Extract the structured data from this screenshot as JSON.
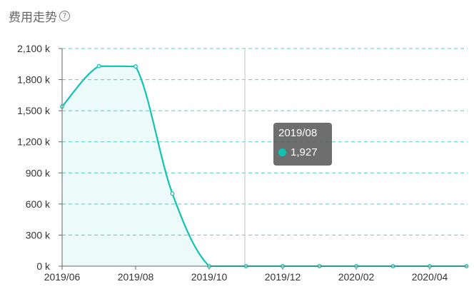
{
  "header": {
    "title": "费用走势",
    "help_glyph": "?"
  },
  "chart_data": {
    "type": "area",
    "title": "费用走势",
    "color": "#11c2b2",
    "x_tick_labels": [
      "2019/06",
      "2019/08",
      "2019/10",
      "2019/12",
      "2020/02",
      "2020/04"
    ],
    "x": [
      "2019/06",
      "2019/07",
      "2019/08",
      "2019/09",
      "2019/10",
      "2019/11",
      "2019/12",
      "2020/01",
      "2020/02",
      "2020/03",
      "2020/04",
      "2020/05"
    ],
    "values": [
      1540,
      1930,
      1927,
      700,
      0,
      0,
      0,
      0,
      0,
      0,
      0,
      0
    ],
    "ylim": [
      0,
      2100
    ],
    "y_ticks": [
      0,
      300,
      600,
      900,
      1200,
      1500,
      1800,
      2100
    ],
    "y_tick_labels": [
      "0 k",
      "300 k",
      "600 k",
      "900 k",
      "1,200 k",
      "1,500 k",
      "1,800 k",
      "2,100 k"
    ],
    "grid": true,
    "legend": "none"
  },
  "tooltip": {
    "title": "2019/08",
    "value": "1,927"
  }
}
